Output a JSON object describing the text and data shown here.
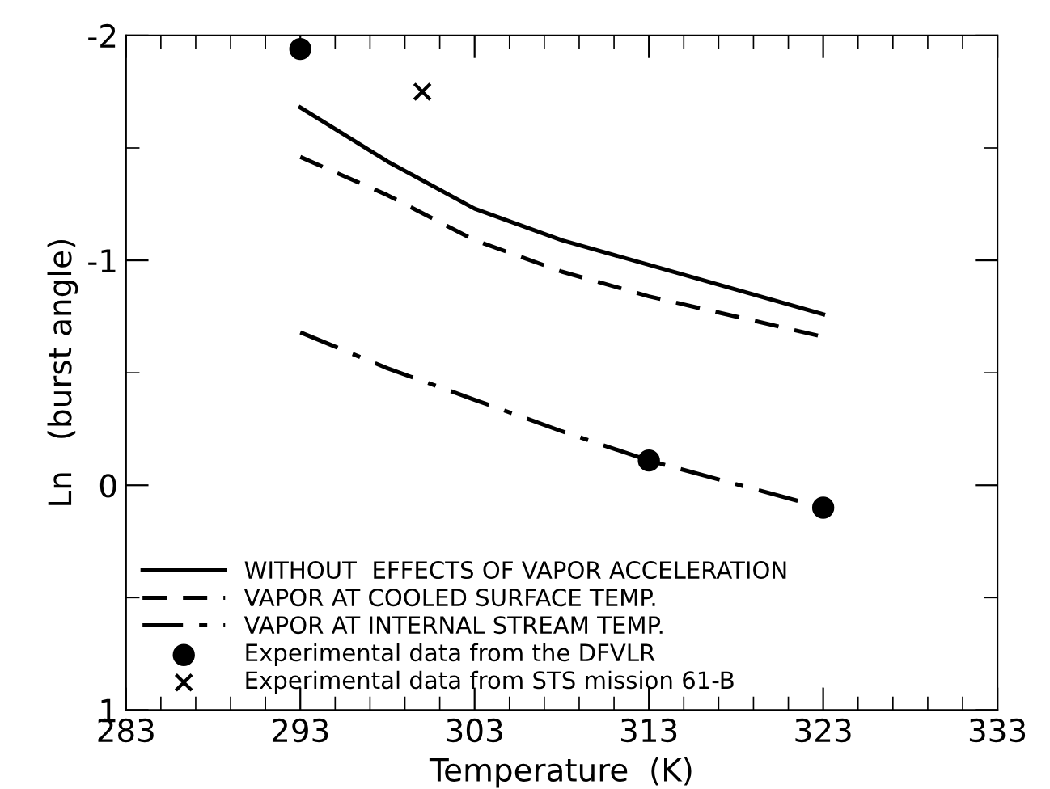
{
  "chart_data": {
    "type": "line",
    "xlabel": "Temperature  (K)",
    "ylabel": "Ln   (burst angle)",
    "x": [
      293,
      298,
      303,
      308,
      313,
      323
    ],
    "xlim": [
      283,
      333
    ],
    "xticks": [
      283,
      293,
      303,
      313,
      323,
      333
    ],
    "ylim": [
      1,
      -2
    ],
    "yticks": [
      {
        "value": -2,
        "label": "-2"
      },
      {
        "value": -1,
        "label": "-1"
      },
      0,
      1
    ],
    "grid": false,
    "legend": "bottom left",
    "series": [
      {
        "name": "WITHOUT  EFFECTS OF VAPOR ACCELERATION",
        "color": "#000000",
        "line_style": "solid",
        "marker": "none",
        "values": [
          -1.68,
          -1.44,
          -1.23,
          -1.09,
          -0.98,
          -0.76
        ]
      },
      {
        "name": "VAPOR AT COOLED SURFACE TEMP.",
        "color": "#000000",
        "line_style": "dashed",
        "marker": "none",
        "values": [
          -1.46,
          -1.29,
          -1.09,
          -0.95,
          -0.84,
          -0.66
        ]
      },
      {
        "name": "VAPOR AT INTERNAL STREAM TEMP.",
        "color": "#000000",
        "line_style": "dashdot",
        "marker": "none",
        "values": [
          -0.68,
          -0.52,
          -0.38,
          -0.24,
          -0.11,
          0.1
        ]
      },
      {
        "name": "Experimental data from the DFVLR",
        "type": "scatter",
        "color": "#000000",
        "marker": "circle",
        "x": [
          293,
          313,
          323
        ],
        "values": [
          -1.94,
          -0.11,
          0.1
        ]
      },
      {
        "name": "Experimental data from STS mission 61-B",
        "type": "scatter",
        "color": "#000000",
        "marker": "cross",
        "x": [
          300
        ],
        "values": [
          -1.75
        ]
      }
    ]
  }
}
